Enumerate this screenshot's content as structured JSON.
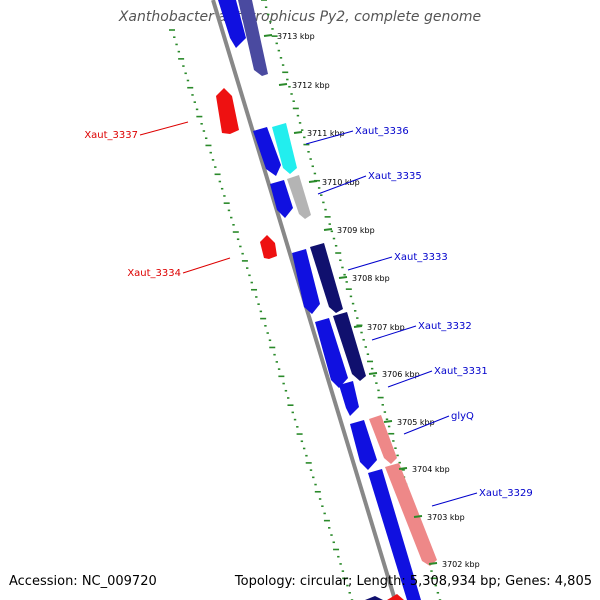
{
  "title": "Xanthobacter autotrophicus Py2, complete genome",
  "footer": {
    "accession": "Accession: NC_009720",
    "summary": "Topology: circular; Length: 5,308,934 bp; Genes: 4,805"
  },
  "colors": {
    "cds_forward": "#1010e0",
    "cds_reverse": "#ee1111",
    "feature_dark_navy": "#10106e",
    "feature_purple": "#4a4aa0",
    "feature_cyan": "#22eeee",
    "feature_gray": "#b4b4b4",
    "feature_salmon": "#ee8888",
    "backbone": "#888888",
    "gc_ticks": "#2a8a2a",
    "label_forward": "#0000cc",
    "label_reverse": "#dd0000"
  },
  "ruler": {
    "unit": "kbp",
    "ticks": [
      "3713 kbp",
      "3712 kbp",
      "3711 kbp",
      "3710 kbp",
      "3709 kbp",
      "3708 kbp",
      "3707 kbp",
      "3706 kbp",
      "3705 kbp",
      "3704 kbp",
      "3703 kbp",
      "3702 kbp"
    ]
  },
  "gene_labels": {
    "forward": [
      "Xaut_3336",
      "Xaut_3335",
      "Xaut_3333",
      "Xaut_3332",
      "Xaut_3331",
      "glyQ",
      "Xaut_3329"
    ],
    "reverse": [
      "Xaut_3337",
      "Xaut_3334"
    ]
  }
}
